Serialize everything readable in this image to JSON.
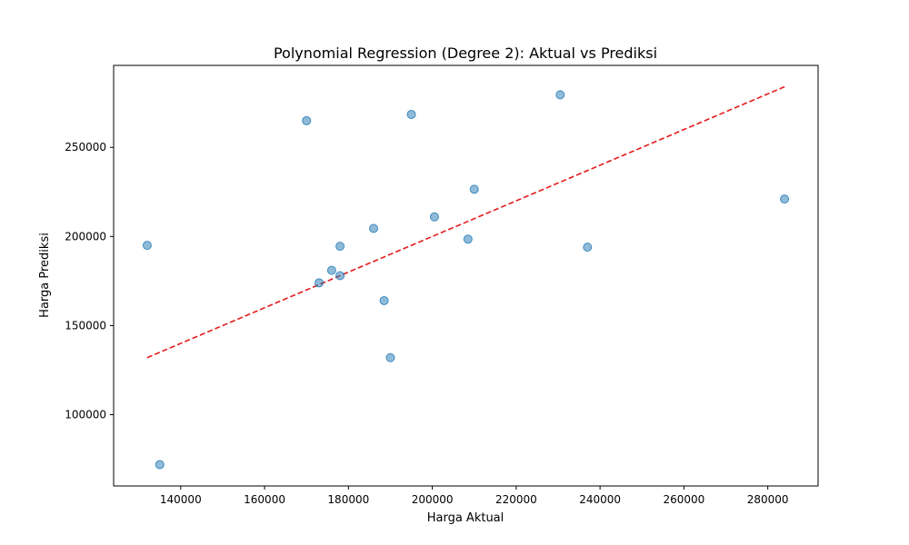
{
  "chart_data": {
    "type": "scatter",
    "title": "Polynomial Regression (Degree 2): Aktual vs Prediksi",
    "xlabel": "Harga Aktual",
    "ylabel": "Harga Prediksi",
    "xlim": [
      124000,
      292000
    ],
    "ylim": [
      60000,
      296000
    ],
    "x_ticks": [
      140000,
      160000,
      180000,
      200000,
      220000,
      240000,
      260000,
      280000
    ],
    "y_ticks": [
      100000,
      150000,
      200000,
      250000
    ],
    "grid": false,
    "point_color": "#1f77b4",
    "line_color": "#e41a1c",
    "reference_line": {
      "style": "dashed",
      "x": [
        132000,
        284000
      ],
      "y": [
        132000,
        284000
      ]
    },
    "points": [
      {
        "x": 132000,
        "y": 195000
      },
      {
        "x": 135000,
        "y": 72000
      },
      {
        "x": 170000,
        "y": 265000
      },
      {
        "x": 173000,
        "y": 174000
      },
      {
        "x": 176000,
        "y": 181000
      },
      {
        "x": 178000,
        "y": 194500
      },
      {
        "x": 178000,
        "y": 178000
      },
      {
        "x": 186000,
        "y": 204500
      },
      {
        "x": 188500,
        "y": 164000
      },
      {
        "x": 190000,
        "y": 132000
      },
      {
        "x": 195000,
        "y": 268500
      },
      {
        "x": 200500,
        "y": 211000
      },
      {
        "x": 208500,
        "y": 198500
      },
      {
        "x": 210000,
        "y": 226500
      },
      {
        "x": 230500,
        "y": 279500
      },
      {
        "x": 237000,
        "y": 194000
      },
      {
        "x": 284000,
        "y": 221000
      }
    ]
  }
}
